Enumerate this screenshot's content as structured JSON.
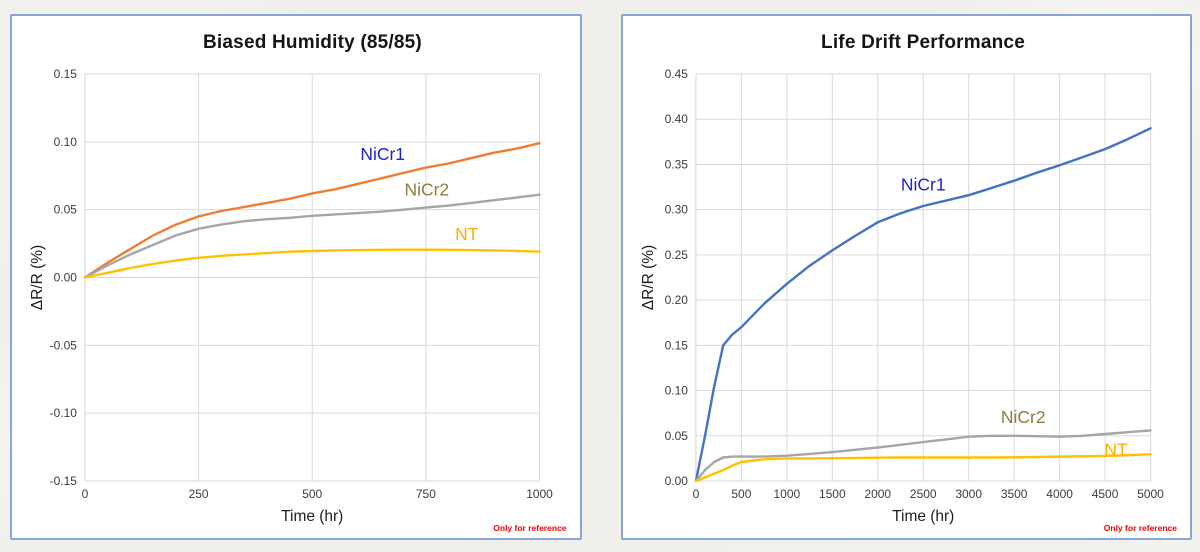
{
  "style": {
    "card_border": "#86a6d9",
    "grid_color": "#d9d9d9",
    "footnote_color": "#ff0000",
    "page_background": "#f1f0ec"
  },
  "chart_data": [
    {
      "type": "line",
      "title": "Biased Humidity (85/85)",
      "xlabel": "Time (hr)",
      "ylabel": "ΔR/R (%)",
      "footnote": "Only for reference",
      "grid": true,
      "legend_position": "inline-labels",
      "xlim": [
        0,
        1000
      ],
      "ylim": [
        -0.15,
        0.15
      ],
      "xticks": [
        {
          "v": 0,
          "label": "0"
        },
        {
          "v": 250,
          "label": "250"
        },
        {
          "v": 500,
          "label": "500"
        },
        {
          "v": 750,
          "label": "750"
        },
        {
          "v": 1000,
          "label": "1000"
        }
      ],
      "yticks": [
        {
          "v": 0.15,
          "label": "0.15"
        },
        {
          "v": 0.1,
          "label": "0.10"
        },
        {
          "v": 0.05,
          "label": "0.05"
        },
        {
          "v": 0.0,
          "label": "0.00"
        },
        {
          "v": -0.05,
          "label": "-0.05"
        },
        {
          "v": -0.1,
          "label": "-0.10"
        },
        {
          "v": -0.15,
          "label": "-0.15"
        }
      ],
      "series": [
        {
          "name": "NiCr1",
          "color": "#ED7D31",
          "label_color": "#2222CC",
          "label_at": [
            655,
            0.091
          ],
          "x": [
            0,
            50,
            100,
            150,
            200,
            250,
            300,
            350,
            400,
            450,
            500,
            550,
            600,
            650,
            700,
            750,
            800,
            850,
            900,
            950,
            1000
          ],
          "y": [
            0,
            0.011,
            0.021,
            0.031,
            0.039,
            0.045,
            0.049,
            0.052,
            0.055,
            0.058,
            0.062,
            0.065,
            0.069,
            0.073,
            0.077,
            0.081,
            0.084,
            0.088,
            0.092,
            0.095,
            0.099
          ]
        },
        {
          "name": "NiCr2",
          "color": "#A6A6A6",
          "label_color": "#8E7D3C",
          "label_at": [
            752,
            0.065
          ],
          "x": [
            0,
            50,
            100,
            150,
            200,
            250,
            300,
            350,
            400,
            450,
            500,
            550,
            600,
            650,
            700,
            750,
            800,
            850,
            900,
            950,
            1000
          ],
          "y": [
            0,
            0.009,
            0.017,
            0.024,
            0.031,
            0.036,
            0.039,
            0.0415,
            0.043,
            0.044,
            0.0455,
            0.0465,
            0.0475,
            0.0485,
            0.05,
            0.0515,
            0.053,
            0.055,
            0.057,
            0.059,
            0.061
          ]
        },
        {
          "name": "NT",
          "color": "#FFC000",
          "label_color": "#FFAF00",
          "label_at": [
            840,
            0.032
          ],
          "x": [
            0,
            50,
            100,
            150,
            200,
            250,
            300,
            350,
            400,
            450,
            500,
            550,
            600,
            650,
            700,
            750,
            800,
            850,
            900,
            950,
            1000
          ],
          "y": [
            0,
            0.0035,
            0.007,
            0.01,
            0.0125,
            0.0145,
            0.016,
            0.017,
            0.018,
            0.019,
            0.0195,
            0.02,
            0.0202,
            0.0204,
            0.0205,
            0.0205,
            0.0204,
            0.0202,
            0.02,
            0.0196,
            0.019
          ]
        }
      ]
    },
    {
      "type": "line",
      "title": "Life Drift Performance",
      "xlabel": "Time (hr)",
      "ylabel": "ΔR/R (%)",
      "footnote": "Only for reference",
      "grid": true,
      "legend_position": "inline-labels",
      "xlim": [
        0,
        5000
      ],
      "ylim": [
        0,
        0.45
      ],
      "xticks": [
        {
          "v": 0,
          "label": "0"
        },
        {
          "v": 500,
          "label": "500"
        },
        {
          "v": 1000,
          "label": "1000"
        },
        {
          "v": 1500,
          "label": "1500"
        },
        {
          "v": 2000,
          "label": "2000"
        },
        {
          "v": 2500,
          "label": "2500"
        },
        {
          "v": 3000,
          "label": "3000"
        },
        {
          "v": 3500,
          "label": "3500"
        },
        {
          "v": 4000,
          "label": "4000"
        },
        {
          "v": 4500,
          "label": "4500"
        },
        {
          "v": 5000,
          "label": "5000"
        }
      ],
      "yticks": [
        {
          "v": 0.45,
          "label": "0.45"
        },
        {
          "v": 0.4,
          "label": "0.40"
        },
        {
          "v": 0.35,
          "label": "0.35"
        },
        {
          "v": 0.3,
          "label": "0.30"
        },
        {
          "v": 0.25,
          "label": "0.25"
        },
        {
          "v": 0.2,
          "label": "0.20"
        },
        {
          "v": 0.15,
          "label": "0.15"
        },
        {
          "v": 0.1,
          "label": "0.10"
        },
        {
          "v": 0.05,
          "label": "0.05"
        },
        {
          "v": 0.0,
          "label": "0.00"
        }
      ],
      "series": [
        {
          "name": "NiCr1",
          "color": "#4472C4",
          "label_color": "#2222CC",
          "label_at": [
            2500,
            0.328
          ],
          "x": [
            0,
            100,
            200,
            300,
            400,
            500,
            750,
            1000,
            1250,
            1500,
            1750,
            2000,
            2250,
            2500,
            2750,
            3000,
            3250,
            3500,
            3750,
            4000,
            4250,
            4500,
            4750,
            5000
          ],
          "y": [
            0,
            0.05,
            0.104,
            0.15,
            0.162,
            0.17,
            0.196,
            0.218,
            0.238,
            0.255,
            0.271,
            0.286,
            0.296,
            0.304,
            0.31,
            0.316,
            0.324,
            0.332,
            0.341,
            0.349,
            0.358,
            0.367,
            0.378,
            0.39
          ]
        },
        {
          "name": "NiCr2",
          "color": "#A6A6A6",
          "label_color": "#8E7D3C",
          "label_at": [
            3600,
            0.071
          ],
          "x": [
            0,
            100,
            200,
            300,
            400,
            500,
            750,
            1000,
            1250,
            1500,
            1750,
            2000,
            2250,
            2500,
            2750,
            3000,
            3250,
            3500,
            3750,
            4000,
            4250,
            4500,
            4750,
            5000
          ],
          "y": [
            0,
            0.012,
            0.021,
            0.026,
            0.027,
            0.027,
            0.027,
            0.028,
            0.03,
            0.032,
            0.0345,
            0.037,
            0.04,
            0.043,
            0.046,
            0.049,
            0.05,
            0.05,
            0.0495,
            0.049,
            0.05,
            0.052,
            0.054,
            0.056
          ]
        },
        {
          "name": "NT",
          "color": "#FFC000",
          "label_color": "#FFAF00",
          "label_at": [
            4620,
            0.035
          ],
          "x": [
            0,
            100,
            200,
            300,
            400,
            500,
            750,
            1000,
            1250,
            1500,
            1750,
            2000,
            2250,
            2500,
            2750,
            3000,
            3250,
            3500,
            3750,
            4000,
            4250,
            4500,
            4750,
            5000
          ],
          "y": [
            0,
            0.004,
            0.008,
            0.012,
            0.017,
            0.021,
            0.024,
            0.025,
            0.025,
            0.0252,
            0.0255,
            0.0258,
            0.026,
            0.026,
            0.026,
            0.026,
            0.026,
            0.0262,
            0.0265,
            0.027,
            0.0273,
            0.0278,
            0.0285,
            0.0295
          ]
        }
      ]
    }
  ]
}
